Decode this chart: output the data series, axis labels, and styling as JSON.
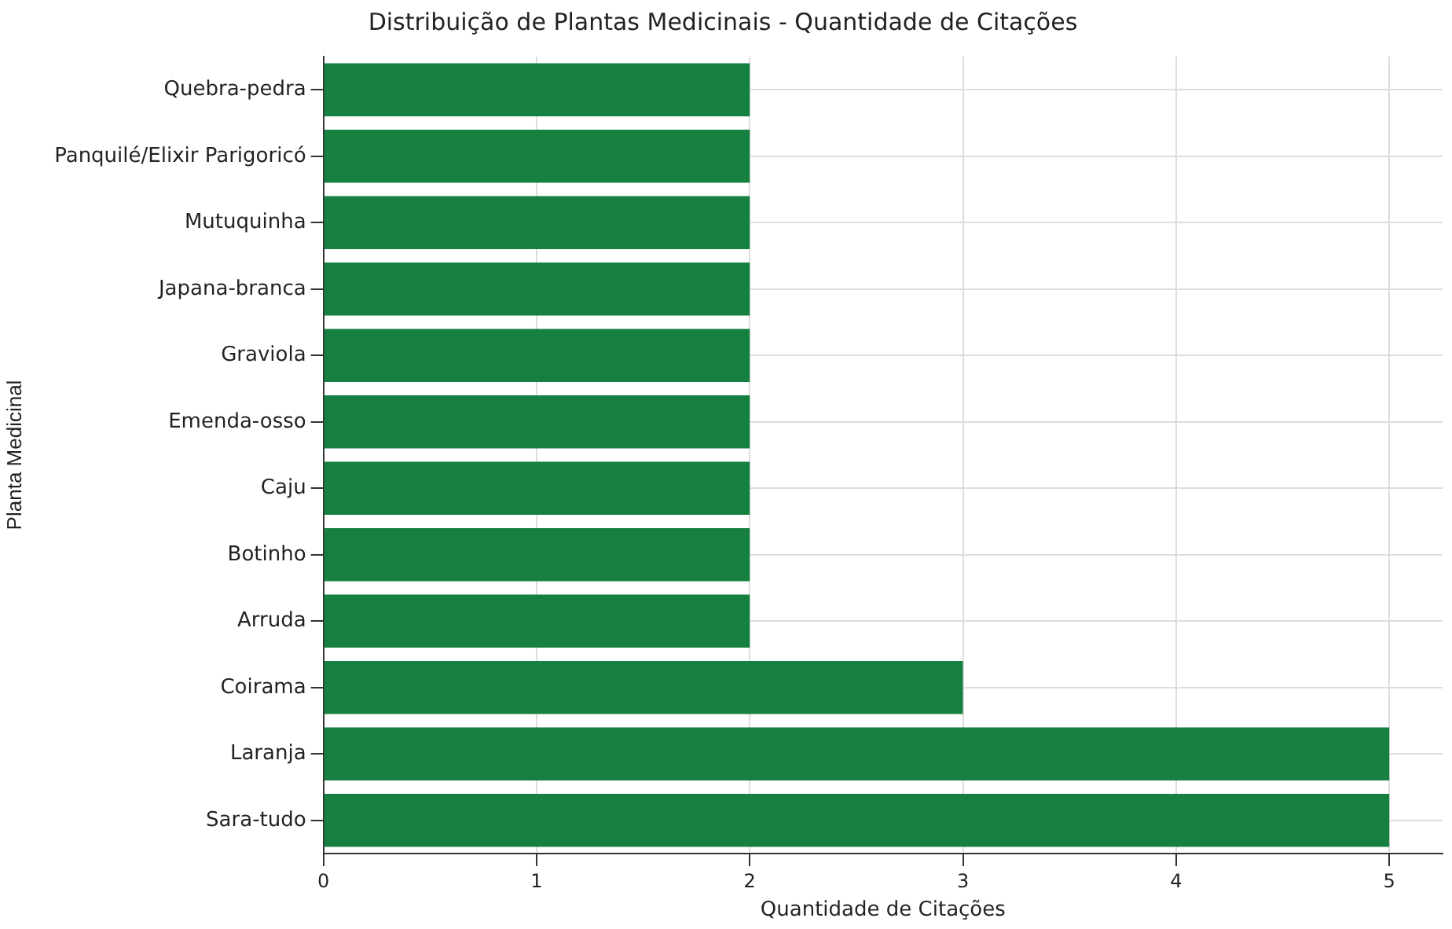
{
  "chart_data": {
    "type": "bar",
    "orientation": "horizontal",
    "title": "Distribuição de Plantas Medicinais - Quantidade de Citações",
    "xlabel": "Quantidade de Citações",
    "ylabel": "Planta Medicinal",
    "categories": [
      "Quebra-pedra",
      "Panquilé/Elixir Parigoricó",
      "Mutuquinha",
      "Japana-branca",
      "Graviola",
      "Emenda-osso",
      "Caju",
      "Botinho",
      "Arruda",
      "Coirama",
      "Laranja",
      "Sara-tudo"
    ],
    "values": [
      2,
      2,
      2,
      2,
      2,
      2,
      2,
      2,
      2,
      3,
      5,
      5
    ],
    "color": "#168040",
    "xlim": [
      0,
      5.25
    ],
    "xticks": [
      0,
      1,
      2,
      3,
      4,
      5
    ],
    "grid": true,
    "legend": false
  }
}
